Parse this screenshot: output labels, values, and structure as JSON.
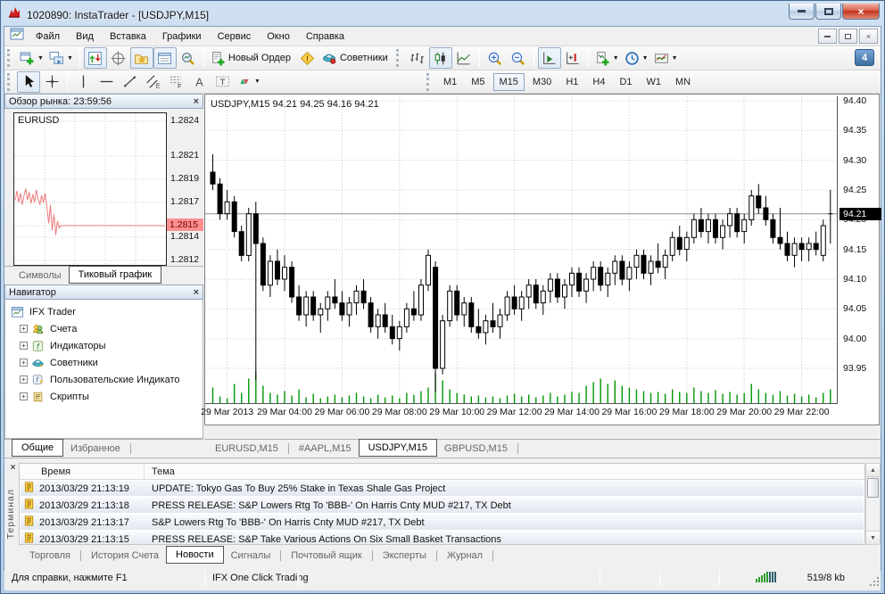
{
  "window": {
    "title": "1020890: InstaTrader - [USDJPY,M15]"
  },
  "menu": {
    "items": [
      "Файл",
      "Вид",
      "Вставка",
      "Графики",
      "Сервис",
      "Окно",
      "Справка"
    ]
  },
  "toolbar": {
    "notification_count": "4",
    "standard": [
      {
        "name": "new-chart",
        "dropdown": true,
        "group": 1
      },
      {
        "name": "profiles",
        "dropdown": true,
        "group": 1
      },
      {
        "name": "market-watch",
        "pressed": true,
        "group": 2
      },
      {
        "name": "data-window",
        "group": 2
      },
      {
        "name": "navigator",
        "pressed": true,
        "group": 2
      },
      {
        "name": "terminal",
        "pressed": true,
        "group": 2
      },
      {
        "name": "strategy-tester",
        "group": 2
      },
      {
        "name": "new-order",
        "label": "Новый Ордер",
        "group": 3
      },
      {
        "name": "metaeditor",
        "group": 3
      },
      {
        "name": "experts",
        "label": "Советники",
        "group": 3
      }
    ],
    "charts": [
      {
        "name": "bar-chart",
        "group": 1
      },
      {
        "name": "candlestick",
        "pressed": true,
        "group": 1
      },
      {
        "name": "line-chart",
        "group": 1
      },
      {
        "name": "zoom-in",
        "group": 2
      },
      {
        "name": "zoom-out",
        "group": 2
      },
      {
        "name": "auto-scroll",
        "pressed": true,
        "group": 3
      },
      {
        "name": "chart-shift",
        "group": 3
      },
      {
        "name": "indicators",
        "dropdown": true,
        "group": 4
      },
      {
        "name": "timeframes",
        "dropdown": true,
        "group": 4
      },
      {
        "name": "templates",
        "dropdown": true,
        "group": 4
      }
    ],
    "drawing": [
      {
        "name": "cursor",
        "pressed": true,
        "group": 1
      },
      {
        "name": "crosshair",
        "group": 1
      },
      {
        "name": "vertical-line",
        "group": 2
      },
      {
        "name": "horizontal-line",
        "group": 2
      },
      {
        "name": "trend-line",
        "group": 2
      },
      {
        "name": "equidistant-channel",
        "group": 2
      },
      {
        "name": "fibonacci",
        "group": 2
      },
      {
        "name": "text",
        "group": 2
      },
      {
        "name": "text-label",
        "group": 2
      },
      {
        "name": "arrows",
        "dropdown": true,
        "group": 2
      }
    ]
  },
  "periods": {
    "items": [
      "M1",
      "M5",
      "M15",
      "M30",
      "H1",
      "H4",
      "D1",
      "W1",
      "MN"
    ],
    "selected": "M15"
  },
  "market_watch": {
    "title": "Обзор рынка: 23:59:56",
    "symbol": "EURUSD",
    "tabs": [
      "Символы",
      "Тиковый график"
    ],
    "selected_tab": "Тиковый график",
    "current_price": "1.2815",
    "price_labels": [
      1.2824,
      1.2821,
      1.2819,
      1.2817,
      1.2815,
      1.2814,
      1.2812
    ],
    "line_color": "#ef7b7b",
    "badge_color": "#ff8e8e",
    "tick_head": [
      1.28172,
      1.2818,
      1.2817,
      1.28178,
      1.28168,
      1.28176,
      1.28182,
      1.28172,
      1.28179,
      1.28169,
      1.28177,
      1.2817,
      1.28181,
      1.28173,
      1.28168,
      1.28176,
      1.2817,
      1.28178,
      1.28166,
      1.28152,
      1.28168,
      1.28146,
      1.2816,
      1.28142,
      1.28154,
      1.28148
    ],
    "tick_flat_value": 1.2815,
    "tick_flat_count": 60
  },
  "navigator": {
    "title": "Навигатор",
    "root": "IFX Trader",
    "items": [
      {
        "label": "Счета",
        "icon": "accounts"
      },
      {
        "label": "Индикаторы",
        "icon": "indicators"
      },
      {
        "label": "Советники",
        "icon": "experts"
      },
      {
        "label": "Пользовательские Индикато",
        "icon": "custom-indicators"
      },
      {
        "label": "Скрипты",
        "icon": "scripts"
      }
    ],
    "tabs": [
      "Общие",
      "Избранное"
    ],
    "selected_tab": "Общие"
  },
  "chart": {
    "header": "USDJPY,M15  94.21 94.25 94.16 94.21",
    "tabs": [
      "EURUSD,M15",
      "#AAPL,M15",
      "USDJPY,M15",
      "GBPUSD,M15"
    ],
    "selected_tab": "USDJPY,M15",
    "current_price": "94.21"
  },
  "chart_data": {
    "type": "candlestick",
    "symbol": "USDJPY",
    "timeframe": "M15",
    "title": "USDJPY,M15",
    "open": 94.21,
    "high": 94.25,
    "low": 94.16,
    "close": 94.21,
    "y_axis": {
      "max": 94.4075,
      "min": 93.89,
      "ticks": [
        94.4,
        94.35,
        94.3,
        94.25,
        94.2,
        94.15,
        94.1,
        94.05,
        94.0,
        93.95
      ]
    },
    "x_labels": [
      {
        "label": "29 Mar 2013",
        "index": 2
      },
      {
        "label": "29 Mar 04:00",
        "index": 10
      },
      {
        "label": "29 Mar 06:00",
        "index": 18
      },
      {
        "label": "29 Mar 08:00",
        "index": 26
      },
      {
        "label": "29 Mar 10:00",
        "index": 34
      },
      {
        "label": "29 Mar 12:00",
        "index": 42
      },
      {
        "label": "29 Mar 14:00",
        "index": 50
      },
      {
        "label": "29 Mar 16:00",
        "index": 58
      },
      {
        "label": "29 Mar 18:00",
        "index": 66
      },
      {
        "label": "29 Mar 20:00",
        "index": 74
      },
      {
        "label": "29 Mar 22:00",
        "index": 82
      }
    ],
    "current_price": 94.21,
    "colors": {
      "bull": "#ffffff",
      "bear": "#000000",
      "wick": "#000000",
      "volume": "#009600",
      "grid": "#c9c9c9",
      "price_line": "#8c8c8c",
      "badge_bg": "#000000",
      "badge_text": "#ffffff"
    },
    "candles": [
      [
        94.28,
        94.31,
        94.25,
        94.26,
        18
      ],
      [
        94.26,
        94.27,
        94.2,
        94.21,
        8
      ],
      [
        94.21,
        94.25,
        94.2,
        94.23,
        6
      ],
      [
        94.23,
        94.24,
        94.17,
        94.18,
        22
      ],
      [
        94.18,
        94.19,
        94.13,
        94.14,
        12
      ],
      [
        94.14,
        94.22,
        94.13,
        94.21,
        28
      ],
      [
        94.21,
        94.23,
        93.93,
        94.16,
        36
      ],
      [
        94.16,
        94.17,
        94.08,
        94.09,
        20
      ],
      [
        94.09,
        94.14,
        94.07,
        94.13,
        12
      ],
      [
        94.13,
        94.15,
        94.09,
        94.1,
        10
      ],
      [
        94.1,
        94.14,
        94.08,
        94.12,
        14
      ],
      [
        94.12,
        94.13,
        94.06,
        94.07,
        9
      ],
      [
        94.07,
        94.09,
        94.03,
        94.04,
        16
      ],
      [
        94.04,
        94.08,
        94.02,
        94.07,
        7
      ],
      [
        94.07,
        94.08,
        94.03,
        94.04,
        11
      ],
      [
        94.04,
        94.06,
        94.01,
        94.05,
        6
      ],
      [
        94.05,
        94.08,
        94.03,
        94.07,
        8
      ],
      [
        94.07,
        94.1,
        94.05,
        94.06,
        10
      ],
      [
        94.06,
        94.08,
        94.03,
        94.04,
        7
      ],
      [
        94.04,
        94.07,
        94.02,
        94.06,
        9
      ],
      [
        94.06,
        94.09,
        94.04,
        94.08,
        12
      ],
      [
        94.08,
        94.1,
        94.05,
        94.06,
        8
      ],
      [
        94.06,
        94.07,
        94.01,
        94.02,
        6
      ],
      [
        94.02,
        94.05,
        94.0,
        94.04,
        10
      ],
      [
        94.04,
        94.06,
        94.01,
        94.02,
        7
      ],
      [
        94.02,
        94.04,
        93.99,
        94.0,
        9
      ],
      [
        94.0,
        94.03,
        93.98,
        94.02,
        6
      ],
      [
        94.02,
        94.06,
        94.01,
        94.05,
        12
      ],
      [
        94.05,
        94.08,
        94.03,
        94.04,
        10
      ],
      [
        94.04,
        94.1,
        94.03,
        94.09,
        14
      ],
      [
        94.09,
        94.15,
        94.08,
        94.14,
        18
      ],
      [
        94.12,
        94.13,
        93.91,
        93.95,
        34
      ],
      [
        93.95,
        94.04,
        93.94,
        94.03,
        26
      ],
      [
        94.03,
        94.09,
        94.02,
        94.08,
        16
      ],
      [
        94.08,
        94.09,
        94.03,
        94.04,
        12
      ],
      [
        94.04,
        94.07,
        94.02,
        94.06,
        10
      ],
      [
        94.06,
        94.07,
        94.01,
        94.02,
        8
      ],
      [
        94.02,
        94.05,
        94.0,
        94.01,
        9
      ],
      [
        94.01,
        94.04,
        93.99,
        94.03,
        7
      ],
      [
        94.03,
        94.06,
        94.01,
        94.02,
        8
      ],
      [
        94.02,
        94.05,
        94.0,
        94.04,
        6
      ],
      [
        94.04,
        94.08,
        94.03,
        94.07,
        9
      ],
      [
        94.07,
        94.09,
        94.04,
        94.05,
        11
      ],
      [
        94.05,
        94.08,
        94.03,
        94.07,
        8
      ],
      [
        94.07,
        94.1,
        94.05,
        94.09,
        10
      ],
      [
        94.09,
        94.1,
        94.05,
        94.06,
        7
      ],
      [
        94.06,
        94.09,
        94.04,
        94.08,
        9
      ],
      [
        94.08,
        94.11,
        94.06,
        94.1,
        12
      ],
      [
        94.1,
        94.11,
        94.06,
        94.07,
        8
      ],
      [
        94.07,
        94.1,
        94.05,
        94.09,
        10
      ],
      [
        94.09,
        94.12,
        94.07,
        94.11,
        13
      ],
      [
        94.11,
        94.12,
        94.07,
        94.08,
        12
      ],
      [
        94.08,
        94.11,
        94.06,
        94.1,
        20
      ],
      [
        94.1,
        94.13,
        94.08,
        94.12,
        24
      ],
      [
        94.12,
        94.13,
        94.08,
        94.09,
        28
      ],
      [
        94.09,
        94.12,
        94.07,
        94.11,
        22
      ],
      [
        94.11,
        94.14,
        94.09,
        94.13,
        26
      ],
      [
        94.13,
        94.14,
        94.09,
        94.1,
        20
      ],
      [
        94.1,
        94.13,
        94.08,
        94.12,
        18
      ],
      [
        94.12,
        94.15,
        94.1,
        94.14,
        16
      ],
      [
        94.14,
        94.15,
        94.1,
        94.11,
        14
      ],
      [
        94.11,
        94.14,
        94.09,
        94.13,
        12
      ],
      [
        94.13,
        94.16,
        94.11,
        94.12,
        13
      ],
      [
        94.12,
        94.15,
        94.1,
        94.14,
        11
      ],
      [
        94.14,
        94.18,
        94.13,
        94.17,
        16
      ],
      [
        94.17,
        94.19,
        94.14,
        94.15,
        13
      ],
      [
        94.15,
        94.18,
        94.13,
        94.17,
        12
      ],
      [
        94.17,
        94.21,
        94.16,
        94.2,
        18
      ],
      [
        94.2,
        94.22,
        94.17,
        94.18,
        14
      ],
      [
        94.18,
        94.21,
        94.16,
        94.2,
        12
      ],
      [
        94.2,
        94.21,
        94.16,
        94.17,
        15
      ],
      [
        94.17,
        94.2,
        94.15,
        94.19,
        11
      ],
      [
        94.19,
        94.22,
        94.17,
        94.21,
        13
      ],
      [
        94.21,
        94.22,
        94.17,
        94.18,
        10
      ],
      [
        94.18,
        94.21,
        94.16,
        94.2,
        12
      ],
      [
        94.2,
        94.25,
        94.19,
        94.24,
        22
      ],
      [
        94.24,
        94.26,
        94.21,
        94.22,
        16
      ],
      [
        94.22,
        94.24,
        94.19,
        94.2,
        12
      ],
      [
        94.2,
        94.21,
        94.16,
        94.17,
        10
      ],
      [
        94.17,
        94.22,
        94.15,
        94.16,
        14
      ],
      [
        94.16,
        94.18,
        94.13,
        94.14,
        9
      ],
      [
        94.14,
        94.17,
        94.12,
        94.16,
        11
      ],
      [
        94.16,
        94.17,
        94.13,
        94.15,
        8
      ],
      [
        94.15,
        94.17,
        94.13,
        94.16,
        10
      ],
      [
        94.16,
        94.18,
        94.14,
        94.15,
        7
      ],
      [
        94.14,
        94.2,
        94.13,
        94.19,
        12
      ],
      [
        94.21,
        94.25,
        94.16,
        94.21,
        16
      ]
    ]
  },
  "terminal": {
    "side_label": "Терминал",
    "columns": [
      "Время",
      "Тема"
    ],
    "rows": [
      {
        "time": "2013/03/29 21:13:19",
        "topic": "UPDATE: Tokyo Gas To Buy 25% Stake in Texas Shale Gas Project"
      },
      {
        "time": "2013/03/29 21:13:18",
        "topic": "PRESS RELEASE: S&P Lowers Rtg To 'BBB-' On Harris Cnty MUD #217, TX Debt"
      },
      {
        "time": "2013/03/29 21:13:17",
        "topic": "S&P Lowers Rtg To 'BBB-' On Harris Cnty MUD #217, TX Debt"
      },
      {
        "time": "2013/03/29 21:13:15",
        "topic": "PRESS RELEASE: S&P Take Various Actions On Six Small Basket Transactions"
      }
    ],
    "tabs": [
      "Торговля",
      "История Счета",
      "Новости",
      "Сигналы",
      "Почтовый ящик",
      "Эксперты",
      "Журнал"
    ],
    "selected_tab": "Новости"
  },
  "status_bar": {
    "help": "Для справки, нажмите F1",
    "trading": "IFX One Click Trading",
    "traffic": "519/8 kb"
  }
}
